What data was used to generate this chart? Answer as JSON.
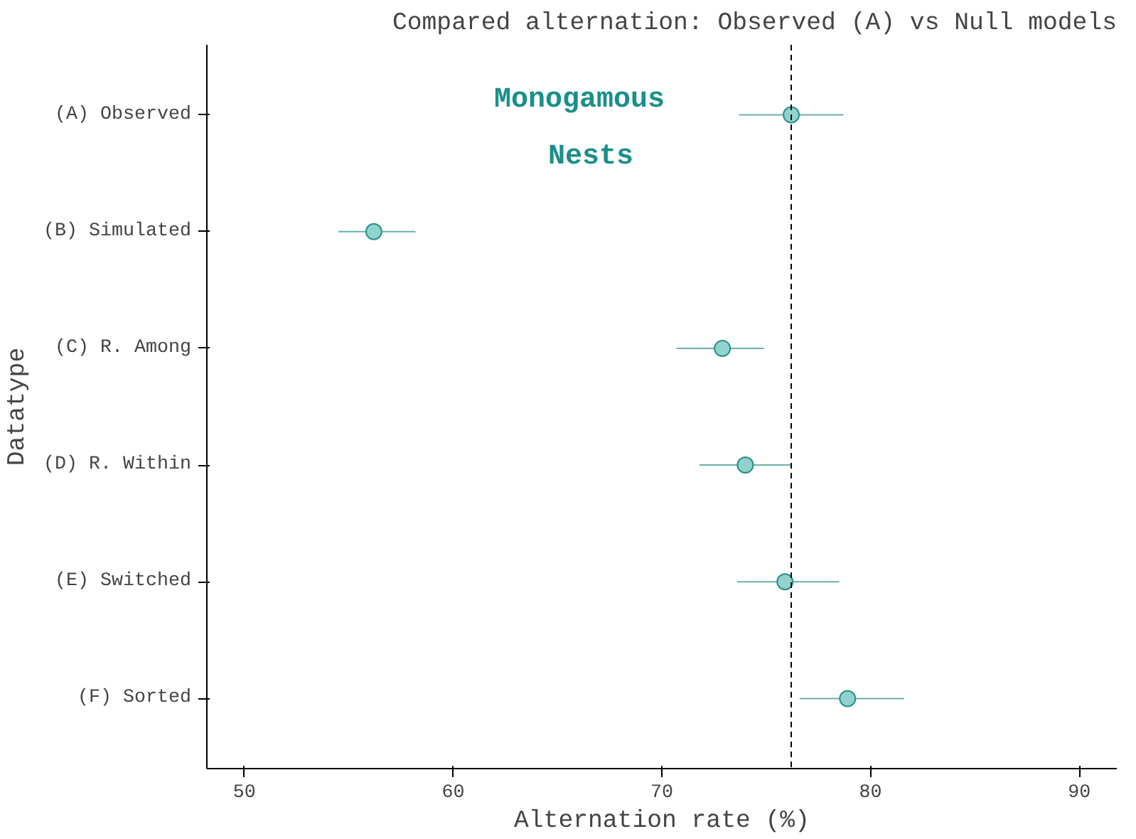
{
  "chart_data": {
    "type": "scatter",
    "title": "Compared alternation: Observed (A) vs Null models",
    "xlabel": "Alternation rate (%)",
    "ylabel": "Datatype",
    "orientation": "horizontal",
    "categories": [
      "(A) Observed",
      "(B) Simulated",
      "(C) R. Among",
      "(D) R. Within",
      "(E) Switched",
      "(F) Sorted"
    ],
    "series": [
      {
        "color": "#2a8f88",
        "values": [
          76.2,
          56.2,
          72.9,
          74.0,
          75.9,
          78.9
        ],
        "errors": [
          [
            73.7,
            78.7
          ],
          [
            54.5,
            58.2
          ],
          [
            70.7,
            74.9
          ],
          [
            71.8,
            76.2
          ],
          [
            73.6,
            78.5
          ],
          [
            76.6,
            81.6
          ]
        ]
      }
    ],
    "marker": "circle",
    "xlim": [
      48.2,
      91.8
    ],
    "xticks": [
      50,
      60,
      70,
      80,
      90
    ],
    "grid": false,
    "ref_lines": [
      {
        "axis": "x",
        "value": 76.2,
        "line_style": "dashed",
        "color": "#000000"
      }
    ],
    "annotations": [
      "Monogamous\nNests"
    ]
  }
}
